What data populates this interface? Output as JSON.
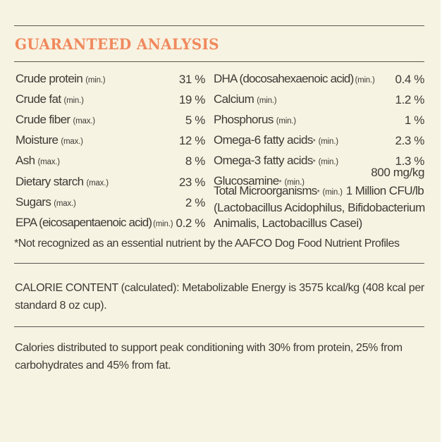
{
  "heading": "GUARANTEED ANALYSIS",
  "left_nutrients": [
    {
      "name": "Crude protein",
      "qualifier": "(min.)",
      "value": "31 %"
    },
    {
      "name": "Crude fat",
      "qualifier": "(min.)",
      "value": "19 %"
    },
    {
      "name": "Crude fiber",
      "qualifier": "(max.)",
      "value": "5 %"
    },
    {
      "name": "Moisture",
      "qualifier": "(max.)",
      "value": "12 %"
    },
    {
      "name": "Ash",
      "qualifier": "(max.)",
      "value": "8 %"
    },
    {
      "name": "Dietary starch",
      "qualifier": "(max.)",
      "value": "23 %"
    },
    {
      "name": "Sugars",
      "qualifier": "(max.)",
      "value": "2 %"
    },
    {
      "name": "EPA (eicosapentaenoic acid)",
      "qualifier": "(min.)",
      "value": "0.2 %"
    }
  ],
  "right_nutrients": [
    {
      "name": "DHA (docosahexaenoic acid)",
      "marker": "",
      "qualifier": "(min.)",
      "value": "0.4 %"
    },
    {
      "name": "Calcium",
      "marker": "",
      "qualifier": "(min.)",
      "value": "1.2 %"
    },
    {
      "name": "Phosphorus",
      "marker": "",
      "qualifier": "(min.)",
      "value": "1 %"
    },
    {
      "name": "Omega-6 fatty acids",
      "marker": "*",
      "qualifier": "(min.)",
      "value": "2.3 %"
    },
    {
      "name": "Omega-3 fatty acids",
      "marker": "*",
      "qualifier": "(min.)",
      "value": "1.3 %"
    },
    {
      "name": "Glucosamine",
      "marker": "*",
      "qualifier": "(min.)",
      "value": "800 mg/kg"
    }
  ],
  "microorganisms": {
    "name": "Total Microorganisms",
    "marker": "*",
    "qualifier": "(min.)",
    "value": "1 Million CFU/lb",
    "detail_line_1": "(Lactobacillus Acidophilus, Bifidobacterium",
    "detail_line_2": "Animalis, Lactobacillus Casei)"
  },
  "footnote": "*Not recognized as an essential nutrient by the AAFCO Dog Food Nutrient Profiles",
  "calorie_content": {
    "line_1": "CALORIE CONTENT (calculated): Metabolizable Energy is 3575 kcal/kg (408 kcal per",
    "line_2": "standard 8 oz cup)."
  },
  "calorie_distribution": {
    "line_1": "Calories distributed to support peak conditioning with 30% from protein, 25% from",
    "line_2": "carbohydrates and 45% from fat."
  }
}
